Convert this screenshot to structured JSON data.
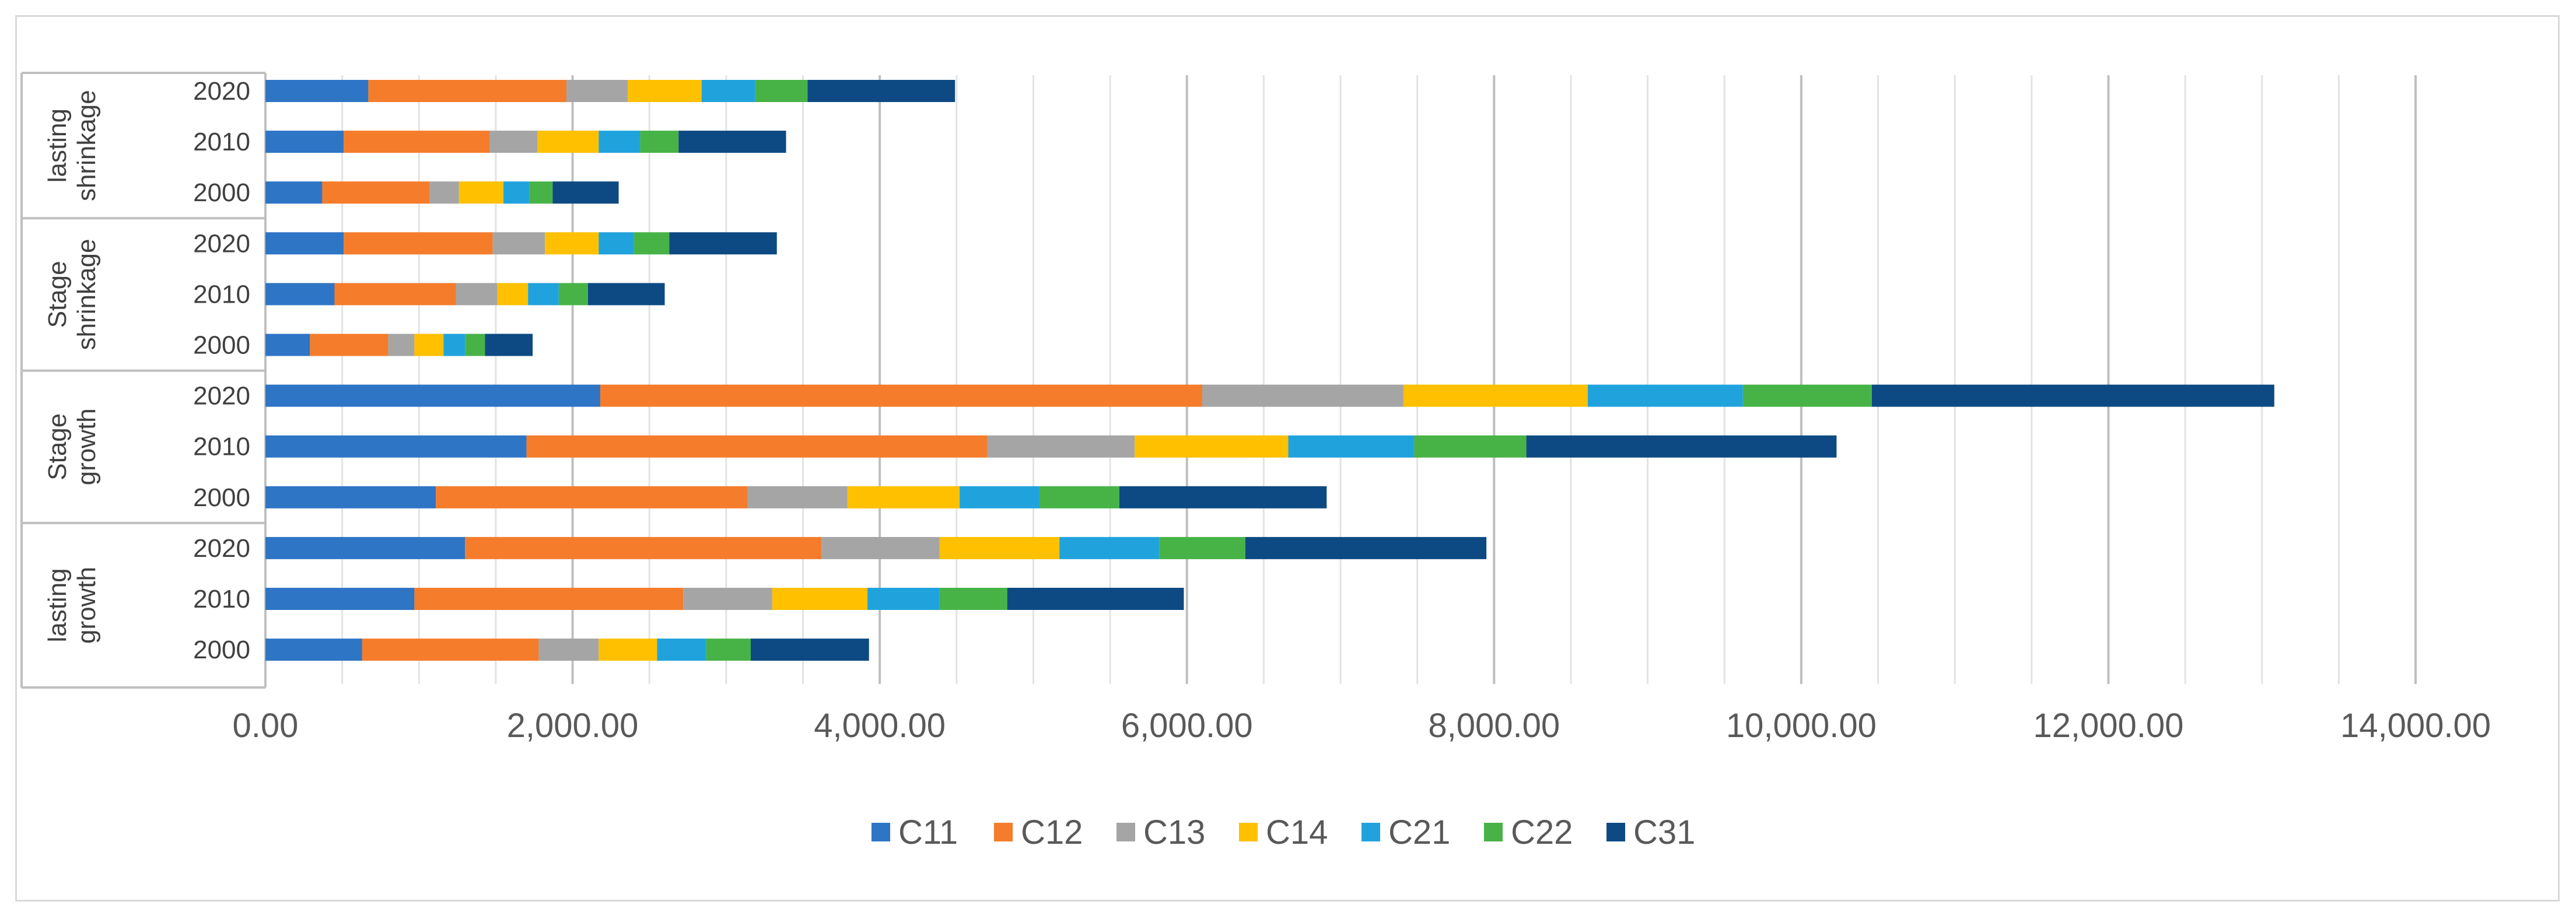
{
  "chart_data": {
    "type": "bar",
    "orientation": "horizontal",
    "stacked": true,
    "xlim": [
      0,
      14000
    ],
    "x_ticks": [
      0,
      2000,
      4000,
      6000,
      8000,
      10000,
      12000,
      14000
    ],
    "x_tick_labels": [
      "0.00",
      "2,000.00",
      "4,000.00",
      "6,000.00",
      "8,000.00",
      "10,000.00",
      "12,000.00",
      "14,000.00"
    ],
    "grid": "vertical",
    "legend_position": "bottom",
    "groups": [
      {
        "label_lines": [
          "lasting",
          "shrinkage"
        ],
        "years": [
          "2020",
          "2010",
          "2000"
        ]
      },
      {
        "label_lines": [
          "Stage",
          "shrinkage"
        ],
        "years": [
          "2020",
          "2010",
          "2000"
        ]
      },
      {
        "label_lines": [
          "Stage",
          "growth"
        ],
        "years": [
          "2020",
          "2010",
          "2000"
        ]
      },
      {
        "label_lines": [
          "lasting",
          "growth"
        ],
        "years": [
          "2020",
          "2010",
          "2000"
        ]
      }
    ],
    "series": [
      {
        "name": "C11",
        "color": "#2e75c6",
        "values": [
          670,
          510,
          370,
          510,
          450,
          290,
          2180,
          1700,
          1110,
          1300,
          970,
          630
        ]
      },
      {
        "name": "C12",
        "color": "#f57c2b",
        "values": [
          1290,
          950,
          700,
          970,
          790,
          510,
          3920,
          3000,
          2030,
          2320,
          1750,
          1150
        ]
      },
      {
        "name": "C13",
        "color": "#a5a5a5",
        "values": [
          400,
          310,
          190,
          340,
          270,
          170,
          1310,
          960,
          650,
          770,
          580,
          390
        ]
      },
      {
        "name": "C14",
        "color": "#ffc000",
        "values": [
          480,
          400,
          290,
          350,
          200,
          190,
          1200,
          1000,
          730,
          780,
          620,
          380
        ]
      },
      {
        "name": "C21",
        "color": "#20a3dd",
        "values": [
          350,
          270,
          170,
          230,
          200,
          140,
          1010,
          820,
          520,
          650,
          470,
          320
        ]
      },
      {
        "name": "C22",
        "color": "#47b347",
        "values": [
          340,
          250,
          150,
          230,
          190,
          130,
          840,
          730,
          520,
          560,
          440,
          290
        ]
      },
      {
        "name": "C31",
        "color": "#0d4a83",
        "values": [
          960,
          700,
          430,
          700,
          500,
          310,
          2620,
          2020,
          1350,
          1570,
          1150,
          770
        ]
      }
    ]
  }
}
